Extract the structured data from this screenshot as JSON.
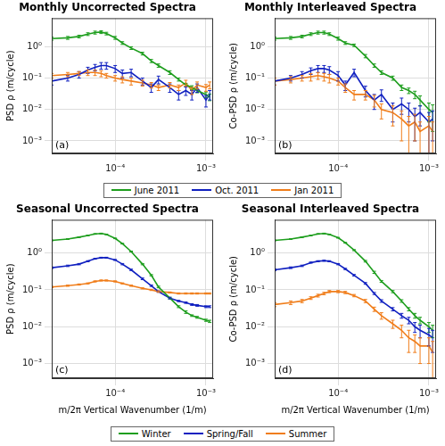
{
  "chart_data": [
    {
      "type": "line",
      "title": "Monthly Uncorrected Spectra",
      "y_label": "PSD ρ (m/cycle)",
      "annotation": "(a)",
      "log": true,
      "grid": true,
      "legend": "bottom",
      "xlim": [
        2e-05,
        0.0012
      ],
      "ylim": [
        0.0004,
        8
      ],
      "xticks": [
        {
          "value": 0.0001,
          "label": "10⁻⁴"
        },
        {
          "value": 0.001,
          "label": "10⁻³"
        }
      ],
      "yticks": [
        {
          "value": 0.001,
          "label": "10⁻³"
        },
        {
          "value": 0.01,
          "label": "10⁻²"
        },
        {
          "value": 0.1,
          "label": "10⁻¹"
        },
        {
          "value": 1,
          "label": "10⁰"
        }
      ],
      "x": [
        2e-05,
        3e-05,
        4e-05,
        5e-05,
        6e-05,
        7e-05,
        8e-05,
        0.0001,
        0.00012,
        0.00015,
        0.0002,
        0.00025,
        0.0003,
        0.0004,
        0.0005,
        0.0006,
        0.0007,
        0.0008,
        0.001,
        0.0011
      ],
      "series": [
        {
          "name": "June 2011",
          "color": "#1e9e1e",
          "values": [
            1.8,
            1.9,
            2.1,
            2.5,
            2.8,
            2.9,
            2.6,
            1.9,
            1.3,
            0.9,
            0.6,
            0.35,
            0.25,
            0.15,
            0.09,
            0.06,
            0.05,
            0.04,
            0.03,
            0.025
          ],
          "errors": [
            0.2,
            0.2,
            0.2,
            0.25,
            0.3,
            0.3,
            0.25,
            0.2,
            0.13,
            0.09,
            0.06,
            0.04,
            0.03,
            0.02,
            0.01,
            0.008,
            0.007,
            0.006,
            0.006,
            0.006
          ]
        },
        {
          "name": "Oct. 2011",
          "color": "#1020c0",
          "values": [
            0.08,
            0.1,
            0.13,
            0.18,
            0.22,
            0.25,
            0.25,
            0.2,
            0.14,
            0.15,
            0.08,
            0.05,
            0.09,
            0.05,
            0.03,
            0.04,
            0.03,
            0.05,
            0.02,
            0.03
          ],
          "errors": [
            0.02,
            0.02,
            0.03,
            0.04,
            0.05,
            0.06,
            0.06,
            0.05,
            0.04,
            0.04,
            0.02,
            0.015,
            0.025,
            0.015,
            0.01,
            0.012,
            0.01,
            0.015,
            0.008,
            0.01
          ]
        },
        {
          "name": "Jan 2011",
          "color": "#f07d1a",
          "values": [
            0.12,
            0.13,
            0.14,
            0.15,
            0.15,
            0.14,
            0.12,
            0.1,
            0.09,
            0.08,
            0.07,
            0.06,
            0.05,
            0.06,
            0.05,
            0.07,
            0.04,
            0.06,
            0.05,
            0.06
          ],
          "errors": [
            0.02,
            0.02,
            0.02,
            0.03,
            0.03,
            0.03,
            0.02,
            0.02,
            0.02,
            0.02,
            0.015,
            0.012,
            0.01,
            0.012,
            0.01,
            0.015,
            0.01,
            0.015,
            0.012,
            0.015
          ]
        }
      ]
    },
    {
      "type": "line",
      "title": "Monthly Interleaved Spectra",
      "y_label": "Co-PSD ρ (m/cycle)",
      "annotation": "(b)",
      "log": true,
      "grid": true,
      "xlim": [
        2e-05,
        0.0012
      ],
      "ylim": [
        0.0004,
        8
      ],
      "xticks": [
        {
          "value": 0.0001,
          "label": "10⁻⁴"
        },
        {
          "value": 0.001,
          "label": "10⁻³"
        }
      ],
      "yticks": [
        {
          "value": 0.001,
          "label": "10⁻³"
        },
        {
          "value": 0.01,
          "label": "10⁻²"
        },
        {
          "value": 0.1,
          "label": "10⁻¹"
        },
        {
          "value": 1,
          "label": "10⁰"
        }
      ],
      "x": [
        2e-05,
        3e-05,
        4e-05,
        5e-05,
        6e-05,
        7e-05,
        8e-05,
        0.0001,
        0.00012,
        0.00015,
        0.0002,
        0.00025,
        0.0003,
        0.0004,
        0.0005,
        0.0006,
        0.0007,
        0.0008,
        0.001,
        0.0011
      ],
      "series": [
        {
          "name": "June 2011",
          "color": "#1e9e1e",
          "values": [
            1.8,
            1.9,
            2.1,
            2.5,
            2.8,
            2.8,
            2.5,
            1.8,
            1.3,
            1.1,
            0.5,
            0.25,
            0.15,
            0.1,
            0.05,
            0.04,
            0.03,
            0.02,
            0.01,
            0.008
          ],
          "errors": [
            0.2,
            0.2,
            0.2,
            0.25,
            0.3,
            0.3,
            0.25,
            0.2,
            0.13,
            0.1,
            0.06,
            0.03,
            0.02,
            0.015,
            0.01,
            0.008,
            0.008,
            0.007,
            0.006,
            0.006
          ]
        },
        {
          "name": "Oct. 2011",
          "color": "#1020c0",
          "values": [
            0.08,
            0.1,
            0.13,
            0.17,
            0.2,
            0.2,
            0.18,
            0.12,
            0.06,
            0.15,
            0.04,
            0.02,
            0.03,
            0.01,
            0.015,
            0.01,
            0.006,
            0.008,
            0.004,
            0.005
          ],
          "errors": [
            0.02,
            0.02,
            0.03,
            0.04,
            0.05,
            0.05,
            0.05,
            0.04,
            0.02,
            0.04,
            0.015,
            0.01,
            0.012,
            0.006,
            0.008,
            0.006,
            0.005,
            0.005,
            0.004,
            0.004
          ]
        },
        {
          "name": "Jan 2011",
          "color": "#f07d1a",
          "values": [
            0.08,
            0.09,
            0.1,
            0.11,
            0.12,
            0.11,
            0.1,
            0.08,
            0.05,
            0.03,
            0.03,
            0.02,
            0.01,
            0.008,
            0.005,
            0.003,
            0.004,
            0.002,
            0.003,
            0.002
          ],
          "errors": [
            0.02,
            0.02,
            0.02,
            0.03,
            0.03,
            0.03,
            0.03,
            0.02,
            0.015,
            0.01,
            0.01,
            0.008,
            0.005,
            0.005,
            0.004,
            0.003,
            0.003,
            0.002,
            0.003,
            0.002
          ]
        }
      ]
    },
    {
      "type": "line",
      "title": "Seasonal Uncorrected Spectra",
      "x_label": "m/2π Vertical Wavenumber (1/m)",
      "y_label": "PSD ρ (m/cycle)",
      "annotation": "(c)",
      "log": true,
      "grid": true,
      "legend": "bottom",
      "xlim": [
        2e-05,
        0.0012
      ],
      "ylim": [
        0.0004,
        8
      ],
      "xticks": [
        {
          "value": 0.0001,
          "label": "10⁻⁴"
        },
        {
          "value": 0.001,
          "label": "10⁻³"
        }
      ],
      "yticks": [
        {
          "value": 0.001,
          "label": "10⁻³"
        },
        {
          "value": 0.01,
          "label": "10⁻²"
        },
        {
          "value": 0.1,
          "label": "10⁻¹"
        },
        {
          "value": 1,
          "label": "10⁰"
        }
      ],
      "x": [
        2e-05,
        3e-05,
        4e-05,
        5e-05,
        6e-05,
        7e-05,
        8e-05,
        0.0001,
        0.00012,
        0.00015,
        0.0002,
        0.00025,
        0.0003,
        0.0004,
        0.0005,
        0.0006,
        0.0007,
        0.0008,
        0.001,
        0.0011
      ],
      "series": [
        {
          "name": "Winter",
          "color": "#1e9e1e",
          "values": [
            2.2,
            2.4,
            2.7,
            3.0,
            3.3,
            3.4,
            3.2,
            2.5,
            1.8,
            1.1,
            0.5,
            0.25,
            0.12,
            0.06,
            0.035,
            0.025,
            0.02,
            0.018,
            0.015,
            0.014
          ],
          "errors": [
            0.05,
            0.05,
            0.06,
            0.06,
            0.07,
            0.07,
            0.07,
            0.05,
            0.04,
            0.03,
            0.02,
            0.01,
            0.006,
            0.003,
            0.002,
            0.002,
            0.001,
            0.001,
            0.001,
            0.001
          ]
        },
        {
          "name": "Spring/Fall",
          "color": "#1020c0",
          "values": [
            0.4,
            0.45,
            0.5,
            0.6,
            0.7,
            0.75,
            0.75,
            0.65,
            0.5,
            0.35,
            0.2,
            0.13,
            0.09,
            0.06,
            0.05,
            0.045,
            0.04,
            0.038,
            0.035,
            0.035
          ],
          "errors": [
            0.02,
            0.02,
            0.02,
            0.02,
            0.02,
            0.02,
            0.02,
            0.02,
            0.02,
            0.015,
            0.01,
            0.006,
            0.004,
            0.003,
            0.002,
            0.002,
            0.002,
            0.002,
            0.002,
            0.002
          ]
        },
        {
          "name": "Summer",
          "color": "#f07d1a",
          "values": [
            0.12,
            0.13,
            0.14,
            0.15,
            0.17,
            0.18,
            0.18,
            0.17,
            0.15,
            0.13,
            0.11,
            0.1,
            0.09,
            0.085,
            0.08,
            0.08,
            0.08,
            0.08,
            0.08,
            0.08
          ],
          "errors": [
            0.005,
            0.005,
            0.005,
            0.005,
            0.006,
            0.006,
            0.006,
            0.006,
            0.005,
            0.005,
            0.004,
            0.004,
            0.004,
            0.003,
            0.003,
            0.003,
            0.003,
            0.003,
            0.003,
            0.003
          ]
        }
      ]
    },
    {
      "type": "line",
      "title": "Seasonal Interleaved Spectra",
      "x_label": "m/2π Vertical Wavenumber (1/m)",
      "y_label": "Co-PSD ρ (m/cycle)",
      "annotation": "(d)",
      "log": true,
      "grid": true,
      "xlim": [
        2e-05,
        0.0012
      ],
      "ylim": [
        0.0004,
        8
      ],
      "xticks": [
        {
          "value": 0.0001,
          "label": "10⁻⁴"
        },
        {
          "value": 0.001,
          "label": "10⁻³"
        }
      ],
      "yticks": [
        {
          "value": 0.001,
          "label": "10⁻³"
        },
        {
          "value": 0.01,
          "label": "10⁻²"
        },
        {
          "value": 0.1,
          "label": "10⁻¹"
        },
        {
          "value": 1,
          "label": "10⁰"
        }
      ],
      "x": [
        2e-05,
        3e-05,
        4e-05,
        5e-05,
        6e-05,
        7e-05,
        8e-05,
        0.0001,
        0.00012,
        0.00015,
        0.0002,
        0.00025,
        0.0003,
        0.0004,
        0.0005,
        0.0006,
        0.0007,
        0.0008,
        0.001,
        0.0011
      ],
      "series": [
        {
          "name": "Winter",
          "color": "#1e9e1e",
          "values": [
            2.2,
            2.4,
            2.7,
            3.0,
            3.3,
            3.4,
            3.2,
            2.6,
            1.9,
            1.2,
            0.6,
            0.3,
            0.17,
            0.09,
            0.05,
            0.03,
            0.02,
            0.015,
            0.01,
            0.008
          ],
          "errors": [
            0.05,
            0.05,
            0.06,
            0.06,
            0.07,
            0.07,
            0.07,
            0.06,
            0.05,
            0.04,
            0.03,
            0.02,
            0.01,
            0.006,
            0.004,
            0.003,
            0.003,
            0.003,
            0.003,
            0.003
          ]
        },
        {
          "name": "Spring/Fall",
          "color": "#1020c0",
          "values": [
            0.35,
            0.4,
            0.45,
            0.55,
            0.6,
            0.62,
            0.6,
            0.5,
            0.37,
            0.25,
            0.15,
            0.08,
            0.05,
            0.03,
            0.02,
            0.015,
            0.01,
            0.008,
            0.006,
            0.005
          ],
          "errors": [
            0.02,
            0.02,
            0.02,
            0.02,
            0.02,
            0.02,
            0.02,
            0.02,
            0.015,
            0.012,
            0.008,
            0.005,
            0.004,
            0.003,
            0.003,
            0.003,
            0.003,
            0.003,
            0.003,
            0.003
          ]
        },
        {
          "name": "Summer",
          "color": "#f07d1a",
          "values": [
            0.04,
            0.045,
            0.05,
            0.06,
            0.07,
            0.08,
            0.09,
            0.09,
            0.085,
            0.07,
            0.05,
            0.03,
            0.02,
            0.012,
            0.008,
            0.005,
            0.004,
            0.003,
            0.003,
            0.002
          ],
          "errors": [
            0.005,
            0.005,
            0.005,
            0.005,
            0.006,
            0.006,
            0.006,
            0.006,
            0.006,
            0.005,
            0.005,
            0.004,
            0.004,
            0.003,
            0.003,
            0.003,
            0.002,
            0.002,
            0.002,
            0.002
          ]
        }
      ]
    }
  ]
}
